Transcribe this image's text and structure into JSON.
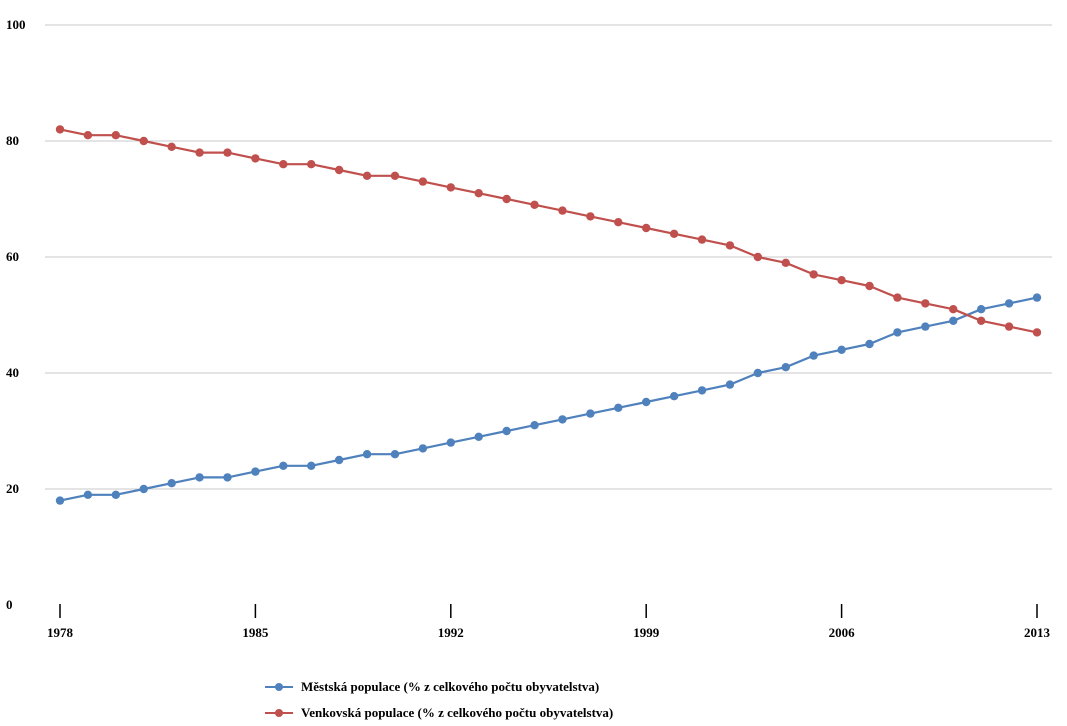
{
  "chart_data": {
    "type": "line",
    "title": "",
    "xlabel": "",
    "ylabel": "",
    "x": [
      1978,
      1979,
      1980,
      1981,
      1982,
      1983,
      1984,
      1985,
      1986,
      1987,
      1988,
      1989,
      1990,
      1991,
      1992,
      1993,
      1994,
      1995,
      1996,
      1997,
      1998,
      1999,
      2000,
      2001,
      2002,
      2003,
      2004,
      2005,
      2006,
      2007,
      2008,
      2009,
      2010,
      2011,
      2012,
      2013
    ],
    "x_ticks": [
      1978,
      1985,
      1992,
      1999,
      2006,
      2013
    ],
    "y_ticks": [
      0,
      20,
      40,
      60,
      80,
      100
    ],
    "ylim": [
      0,
      100
    ],
    "grid": true,
    "legend_position": "bottom",
    "series": [
      {
        "name": "Městská populace (% z celkového počtu obyvatelstva)",
        "color": "#4f81bd",
        "values": [
          18,
          19,
          19,
          20,
          21,
          22,
          22,
          23,
          24,
          24,
          25,
          26,
          26,
          27,
          28,
          29,
          30,
          31,
          32,
          33,
          34,
          35,
          36,
          37,
          38,
          40,
          41,
          43,
          44,
          45,
          47,
          48,
          49,
          51,
          52,
          53
        ]
      },
      {
        "name": "Venkovská populace (% z celkového počtu obyvatelstva)",
        "color": "#c0504d",
        "values": [
          82,
          81,
          81,
          80,
          79,
          78,
          78,
          77,
          76,
          76,
          75,
          74,
          74,
          73,
          72,
          71,
          70,
          69,
          68,
          67,
          66,
          65,
          64,
          63,
          62,
          60,
          59,
          57,
          56,
          55,
          53,
          52,
          51,
          49,
          48,
          47
        ]
      }
    ]
  }
}
